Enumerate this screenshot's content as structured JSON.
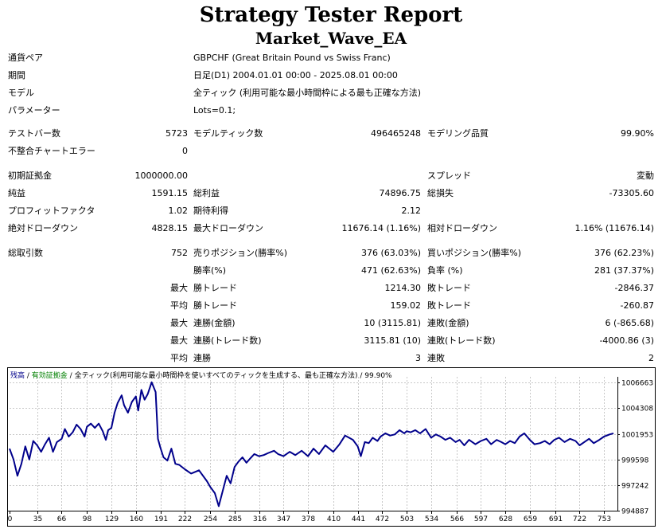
{
  "header": {
    "title": "Strategy Tester Report",
    "subtitle": "Market_Wave_EA"
  },
  "info": {
    "rows": [
      {
        "label": "通貨ペア",
        "value": "GBPCHF (Great Britain Pound vs Swiss Franc)"
      },
      {
        "label": "期間",
        "value": "日足(D1) 2004.01.01 00:00 - 2025.08.01 00:00"
      },
      {
        "label": "モデル",
        "value": "全ティック (利用可能な最小時間枠による最も正確な方法)"
      },
      {
        "label": "パラメーター",
        "value": "Lots=0.1;"
      }
    ]
  },
  "stats": {
    "bars_label": "テストバー数",
    "bars_value": "5723",
    "ticks_label": "モデルティック数",
    "ticks_value": "496465248",
    "quality_label": "モデリング品質",
    "quality_value": "99.90%",
    "mismatch_label": "不整合チャートエラー",
    "mismatch_value": "0",
    "deposit_label": "初期証拠金",
    "deposit_value": "1000000.00",
    "spread_label": "スプレッド",
    "spread_value": "変動",
    "net_label": "純益",
    "net_value": "1591.15",
    "gross_profit_label": "総利益",
    "gross_profit_value": "74896.75",
    "gross_loss_label": "総損失",
    "gross_loss_value": "-73305.60",
    "pf_label": "プロフィットファクタ",
    "pf_value": "1.02",
    "payoff_label": "期待利得",
    "payoff_value": "2.12",
    "abs_dd_label": "絶対ドローダウン",
    "abs_dd_value": "4828.15",
    "max_dd_label": "最大ドローダウン",
    "max_dd_value": "11676.14 (1.16%)",
    "rel_dd_label": "相対ドローダウン",
    "rel_dd_value": "1.16% (11676.14)",
    "trades_label": "総取引数",
    "trades_value": "752",
    "short_label": "売りポジション(勝率%)",
    "short_value": "376 (63.03%)",
    "long_label": "買いポジション(勝率%)",
    "long_value": "376 (62.23%)",
    "win_label": "勝率(%)",
    "win_value": "471 (62.63%)",
    "loss_label": "負率 (%)",
    "loss_value": "281 (37.37%)",
    "max_label": "最大",
    "avg_label": "平均",
    "largest_win_label": "勝トレード",
    "largest_win_value": "1214.30",
    "largest_loss_label": "敗トレード",
    "largest_loss_value": "-2846.37",
    "avg_win_label": "勝トレード",
    "avg_win_value": "159.02",
    "avg_loss_label": "敗トレード",
    "avg_loss_value": "-260.87",
    "max_consec_wins_label": "連勝(金額)",
    "max_consec_wins_value": "10 (3115.81)",
    "max_consec_losses_label": "連敗(金額)",
    "max_consec_losses_value": "6 (-865.68)",
    "max_consec_profit_label": "連勝(トレード数)",
    "max_consec_profit_value": "3115.81 (10)",
    "max_consec_loss_label": "連敗(トレード数)",
    "max_consec_loss_value": "-4000.86 (3)",
    "avg_consec_wins_label": "連勝",
    "avg_consec_wins_value": "3",
    "avg_consec_losses_label": "連敗",
    "avg_consec_losses_value": "2"
  },
  "chart_legend": {
    "balance": "残高",
    "sep1": " / ",
    "equity": "有効証拠金",
    "sep2": " / ",
    "model": "全ティック(利用可能な最小時間枠を使いすべてのティックを生成する、最も正確な方法)",
    "sep3": " / ",
    "quality": "99.90%"
  },
  "colors": {
    "balance_line": "#00008b",
    "legend_balance": "#00008b",
    "legend_equity": "#008000",
    "grid": "#c8c8c8"
  },
  "chart_data": {
    "type": "line",
    "series": [
      {
        "x": [
          0,
          5,
          10,
          15,
          20,
          25,
          30,
          35,
          40,
          45,
          50,
          55,
          60,
          66,
          70,
          75,
          80,
          85,
          90,
          95,
          98,
          103,
          108,
          113,
          118,
          122,
          125,
          129,
          133,
          137,
          142,
          145,
          150,
          155,
          160,
          163,
          167,
          171,
          175,
          180,
          185,
          188,
          191,
          195,
          200,
          205,
          210,
          215,
          222,
          230,
          240,
          250,
          254,
          260,
          265,
          270,
          275,
          280,
          285,
          290,
          295,
          300,
          305,
          310,
          316,
          322,
          328,
          335,
          340,
          347,
          355,
          362,
          370,
          378,
          385,
          392,
          400,
          410,
          418,
          425,
          430,
          435,
          441,
          445,
          450,
          455,
          460,
          466,
          470,
          476,
          482,
          488,
          494,
          500,
          503,
          508,
          514,
          520,
          527,
          534,
          540,
          546,
          552,
          558,
          565,
          570,
          576,
          582,
          590,
          597,
          604,
          610,
          617,
          623,
          628,
          634,
          640,
          646,
          652,
          659,
          665,
          672,
          678,
          684,
          690,
          696,
          703,
          710,
          717,
          722,
          728,
          734,
          740,
          747,
          753,
          760,
          765
        ],
        "y": [
          1000600,
          999600,
          998100,
          999200,
          1000800,
          999600,
          1001300,
          1000900,
          1000300,
          1001000,
          1001600,
          1000300,
          1001200,
          1001500,
          1002400,
          1001700,
          1002100,
          1002800,
          1002400,
          1001700,
          1002600,
          1002900,
          1002500,
          1002900,
          1002200,
          1001400,
          1002300,
          1002500,
          1003900,
          1004800,
          1005500,
          1004600,
          1003900,
          1004900,
          1005400,
          1004100,
          1006000,
          1005100,
          1005600,
          1006700,
          1005800,
          1001500,
          1000700,
          999800,
          999500,
          1000600,
          999200,
          999100,
          998700,
          998300,
          998600,
          997600,
          997100,
          996500,
          995300,
          996700,
          998100,
          997400,
          998900,
          999400,
          999800,
          999300,
          999700,
          1000100,
          999900,
          1000000,
          1000200,
          1000400,
          1000100,
          999900,
          1000300,
          1000000,
          1000400,
          999900,
          1000600,
          1000100,
          1000900,
          1000300,
          1001000,
          1001800,
          1001600,
          1001400,
          1000800,
          999900,
          1001200,
          1001100,
          1001600,
          1001300,
          1001700,
          1002000,
          1001800,
          1001900,
          1002300,
          1002000,
          1002200,
          1002100,
          1002300,
          1002000,
          1002400,
          1001600,
          1001900,
          1001700,
          1001400,
          1001600,
          1001200,
          1001400,
          1000900,
          1001400,
          1001000,
          1001300,
          1001500,
          1001000,
          1001400,
          1001200,
          1001000,
          1001300,
          1001100,
          1001700,
          1002000,
          1001400,
          1001000,
          1001100,
          1001300,
          1001000,
          1001400,
          1001600,
          1001200,
          1001500,
          1001300,
          1000900,
          1001200,
          1001500,
          1001100,
          1001400,
          1001700,
          1001900,
          1002000
        ],
        "name": ""
      }
    ],
    "x_ticks": [
      0,
      35,
      66,
      98,
      129,
      160,
      191,
      222,
      254,
      285,
      316,
      347,
      378,
      410,
      441,
      472,
      503,
      534,
      566,
      597,
      628,
      659,
      691,
      722,
      753
    ],
    "y_ticks": [
      994887,
      997242,
      999598,
      1001953,
      1004308,
      1006663
    ],
    "xlim": [
      0,
      770
    ],
    "ylim": [
      994887,
      1007200
    ],
    "grid": true
  }
}
